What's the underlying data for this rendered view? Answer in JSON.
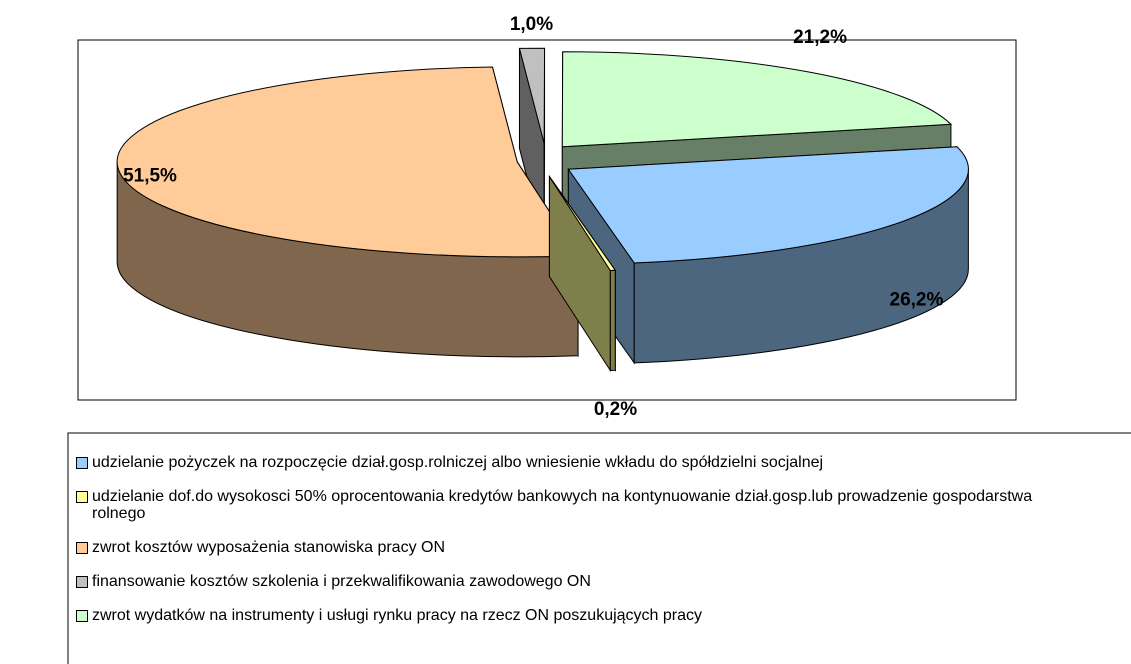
{
  "chart_data": {
    "type": "pie3d",
    "categories": [
      "udzielanie pożyczek na rozpoczęcie dział.gosp.rolniczej albo wniesienie wkładu do spółdzielni socjalnej",
      "udzielanie dof.do wysokosci 50% oprocentowania kredytów bankowych na kontynuowanie dział.gosp.lub prowadzenie gospodarstwa rolnego",
      "zwrot kosztów wyposażenia stanowiska pracy ON",
      "finansowanie kosztów szkolenia i przekwalifikowania zawodowego ON",
      "zwrot wydatków na instrumenty i usługi rynku pracy na rzecz ON poszukujących pracy"
    ],
    "values": [
      26.2,
      0.2,
      51.5,
      1.0,
      21.2
    ],
    "value_labels": [
      "26,2%",
      "0,2%",
      "51,5%",
      "1,0%",
      "21,2%"
    ],
    "colors": [
      "#99ccff",
      "#ffff99",
      "#ffcc99",
      "#c0c0c0",
      "#ccffcc"
    ]
  }
}
